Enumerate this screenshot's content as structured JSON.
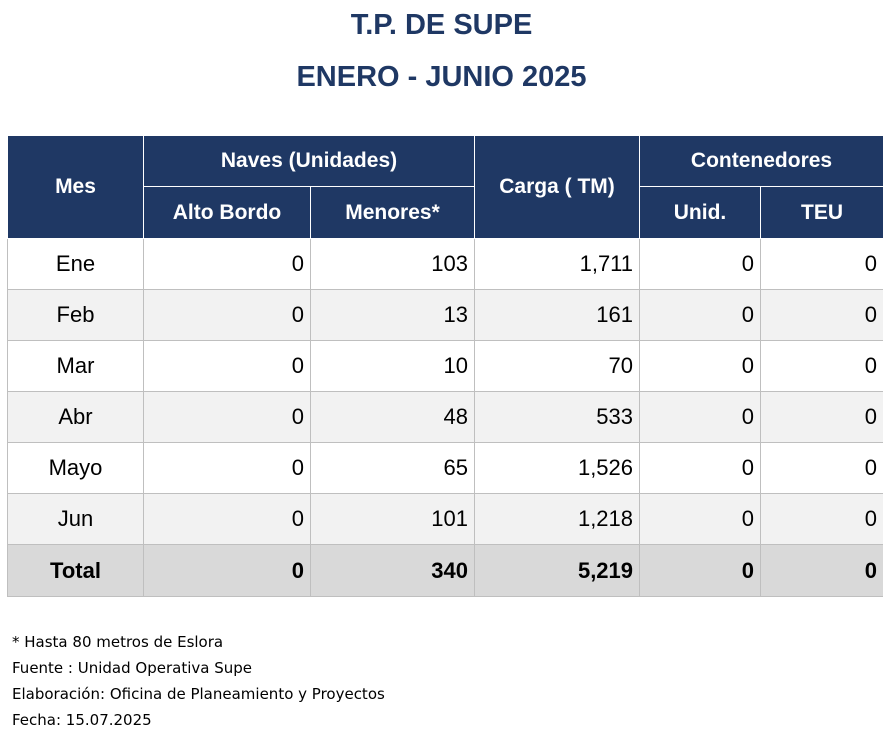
{
  "title_line1": "T.P. DE SUPE",
  "title_line2": "ENERO - JUNIO  2025",
  "headers": {
    "mes": "Mes",
    "naves": "Naves (Unidades)",
    "alto_bordo": "Alto Bordo",
    "menores": "Menores*",
    "carga": "Carga ( TM)",
    "contenedores": "Contenedores",
    "unid": "Unid.",
    "teu": "TEU"
  },
  "rows": [
    {
      "mes": "Ene",
      "alto_bordo": "0",
      "menores": "103",
      "carga": "1,711",
      "unid": "0",
      "teu": "0"
    },
    {
      "mes": "Feb",
      "alto_bordo": "0",
      "menores": "13",
      "carga": "161",
      "unid": "0",
      "teu": "0"
    },
    {
      "mes": "Mar",
      "alto_bordo": "0",
      "menores": "10",
      "carga": "70",
      "unid": "0",
      "teu": "0"
    },
    {
      "mes": "Abr",
      "alto_bordo": "0",
      "menores": "48",
      "carga": "533",
      "unid": "0",
      "teu": "0"
    },
    {
      "mes": "Mayo",
      "alto_bordo": "0",
      "menores": "65",
      "carga": "1,526",
      "unid": "0",
      "teu": "0"
    },
    {
      "mes": "Jun",
      "alto_bordo": "0",
      "menores": "101",
      "carga": "1,218",
      "unid": "0",
      "teu": "0"
    }
  ],
  "total": {
    "mes": "Total",
    "alto_bordo": "0",
    "menores": "340",
    "carga": "5,219",
    "unid": "0",
    "teu": "0"
  },
  "notes": {
    "footnote": "* Hasta 80 metros de Eslora",
    "fuente": "Fuente : Unidad Operativa Supe",
    "elaboracion": "Elaboración: Oficina de Planeamiento y Proyectos",
    "fecha": "Fecha: 15.07.2025"
  },
  "colors": {
    "header_bg": "#1f3864",
    "title": "#1f3864",
    "alt_row": "#f2f2f2",
    "total_row": "#d9d9d9"
  }
}
